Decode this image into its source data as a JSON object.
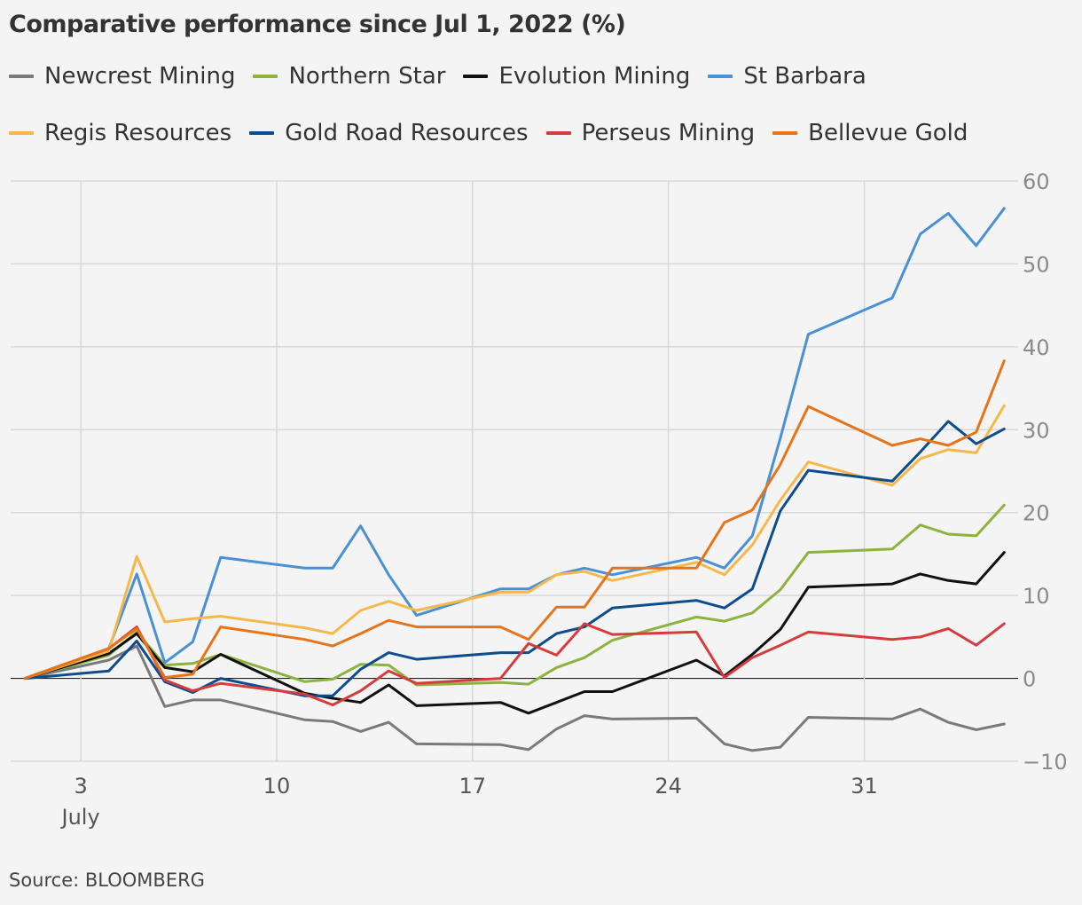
{
  "chart_data": {
    "type": "line",
    "title": "Comparative performance since Jul 1, 2022 (%)",
    "source": "Source: BLOOMBERG",
    "x_label_month": "July",
    "x_ticks": [
      {
        "date": "2022-07-03",
        "label": "3"
      },
      {
        "date": "2022-07-10",
        "label": "10"
      },
      {
        "date": "2022-07-17",
        "label": "17"
      },
      {
        "date": "2022-07-24",
        "label": "24"
      },
      {
        "date": "2022-07-31",
        "label": "31"
      }
    ],
    "ylim": [
      -10,
      60
    ],
    "y_ticks": [
      60,
      50,
      40,
      30,
      20,
      10,
      0,
      -10
    ],
    "y_axis_side": "right",
    "grid": true,
    "legend_position": "top",
    "x": [
      "2022-07-01",
      "2022-07-04",
      "2022-07-05",
      "2022-07-06",
      "2022-07-07",
      "2022-07-08",
      "2022-07-11",
      "2022-07-12",
      "2022-07-13",
      "2022-07-14",
      "2022-07-15",
      "2022-07-18",
      "2022-07-19",
      "2022-07-20",
      "2022-07-21",
      "2022-07-22",
      "2022-07-25",
      "2022-07-26",
      "2022-07-27",
      "2022-07-28",
      "2022-07-29",
      "2022-08-01",
      "2022-08-02",
      "2022-08-03",
      "2022-08-04",
      "2022-08-05"
    ],
    "series": [
      {
        "name": "Newcrest Mining",
        "color": "#7a7a7a",
        "values": [
          0,
          2.2,
          3.9,
          -3.4,
          -2.6,
          -2.6,
          -5.0,
          -5.2,
          -6.4,
          -5.3,
          -7.9,
          -8.0,
          -8.6,
          -6.1,
          -4.5,
          -4.9,
          -4.8,
          -7.9,
          -8.7,
          -8.3,
          -4.7,
          -4.9,
          -3.7,
          -5.3,
          -6.2,
          -5.5
        ]
      },
      {
        "name": "Northern Star",
        "color": "#8cb33e",
        "values": [
          0,
          2.8,
          5.6,
          1.6,
          1.8,
          2.9,
          -0.4,
          -0.1,
          1.7,
          1.6,
          -0.8,
          -0.5,
          -0.7,
          1.3,
          2.5,
          4.6,
          7.4,
          6.9,
          7.9,
          10.7,
          15.2,
          15.6,
          18.5,
          17.4,
          17.2,
          20.9
        ]
      },
      {
        "name": "Evolution Mining",
        "color": "#111111",
        "values": [
          0,
          3.0,
          5.4,
          1.3,
          0.8,
          2.9,
          -1.8,
          -2.4,
          -2.9,
          -0.8,
          -3.3,
          -2.9,
          -4.2,
          -2.9,
          -1.6,
          -1.6,
          2.2,
          0.3,
          2.9,
          5.9,
          11.0,
          11.4,
          12.6,
          11.8,
          11.4,
          15.2
        ]
      },
      {
        "name": "St Barbara",
        "color": "#4a90d4",
        "values": [
          0,
          3.6,
          12.6,
          1.9,
          4.4,
          14.6,
          13.3,
          13.3,
          18.4,
          12.5,
          7.6,
          10.8,
          10.8,
          12.5,
          13.3,
          12.5,
          14.6,
          13.3,
          17.2,
          29.0,
          41.5,
          45.9,
          53.6,
          56.1,
          52.2,
          56.7
        ]
      },
      {
        "name": "Regis Resources",
        "color": "#f6b84a",
        "values": [
          0,
          3.3,
          14.7,
          6.8,
          7.2,
          7.5,
          6.1,
          5.4,
          8.2,
          9.3,
          8.2,
          10.4,
          10.4,
          12.5,
          12.9,
          11.8,
          14.0,
          12.5,
          16.1,
          21.5,
          26.1,
          23.3,
          26.5,
          27.6,
          27.2,
          32.9
        ]
      },
      {
        "name": "Gold Road Resources",
        "color": "#0e4d8c",
        "values": [
          0,
          0.9,
          4.5,
          -0.4,
          -1.7,
          0.0,
          -2.1,
          -2.1,
          1.1,
          3.1,
          2.3,
          3.1,
          3.1,
          5.4,
          6.2,
          8.5,
          9.4,
          8.5,
          10.8,
          20.2,
          25.1,
          23.8,
          27.3,
          31.0,
          28.3,
          30.1
        ]
      },
      {
        "name": "Perseus Mining",
        "color": "#d63c3c",
        "values": [
          0,
          3.6,
          6.2,
          -0.2,
          -1.5,
          -0.6,
          -1.9,
          -3.2,
          -1.5,
          0.9,
          -0.6,
          0.0,
          4.2,
          2.8,
          6.6,
          5.3,
          5.6,
          0.1,
          2.5,
          4.0,
          5.6,
          4.7,
          5.0,
          6.0,
          4.0,
          6.6
        ]
      },
      {
        "name": "Bellevue Gold",
        "color": "#e8741a",
        "values": [
          0,
          3.6,
          6.0,
          0.1,
          0.5,
          6.2,
          4.7,
          3.9,
          5.4,
          7.0,
          6.2,
          6.2,
          4.7,
          8.6,
          8.6,
          13.3,
          13.3,
          18.8,
          20.3,
          25.8,
          32.8,
          28.1,
          28.9,
          28.1,
          29.7,
          38.3
        ]
      }
    ]
  }
}
